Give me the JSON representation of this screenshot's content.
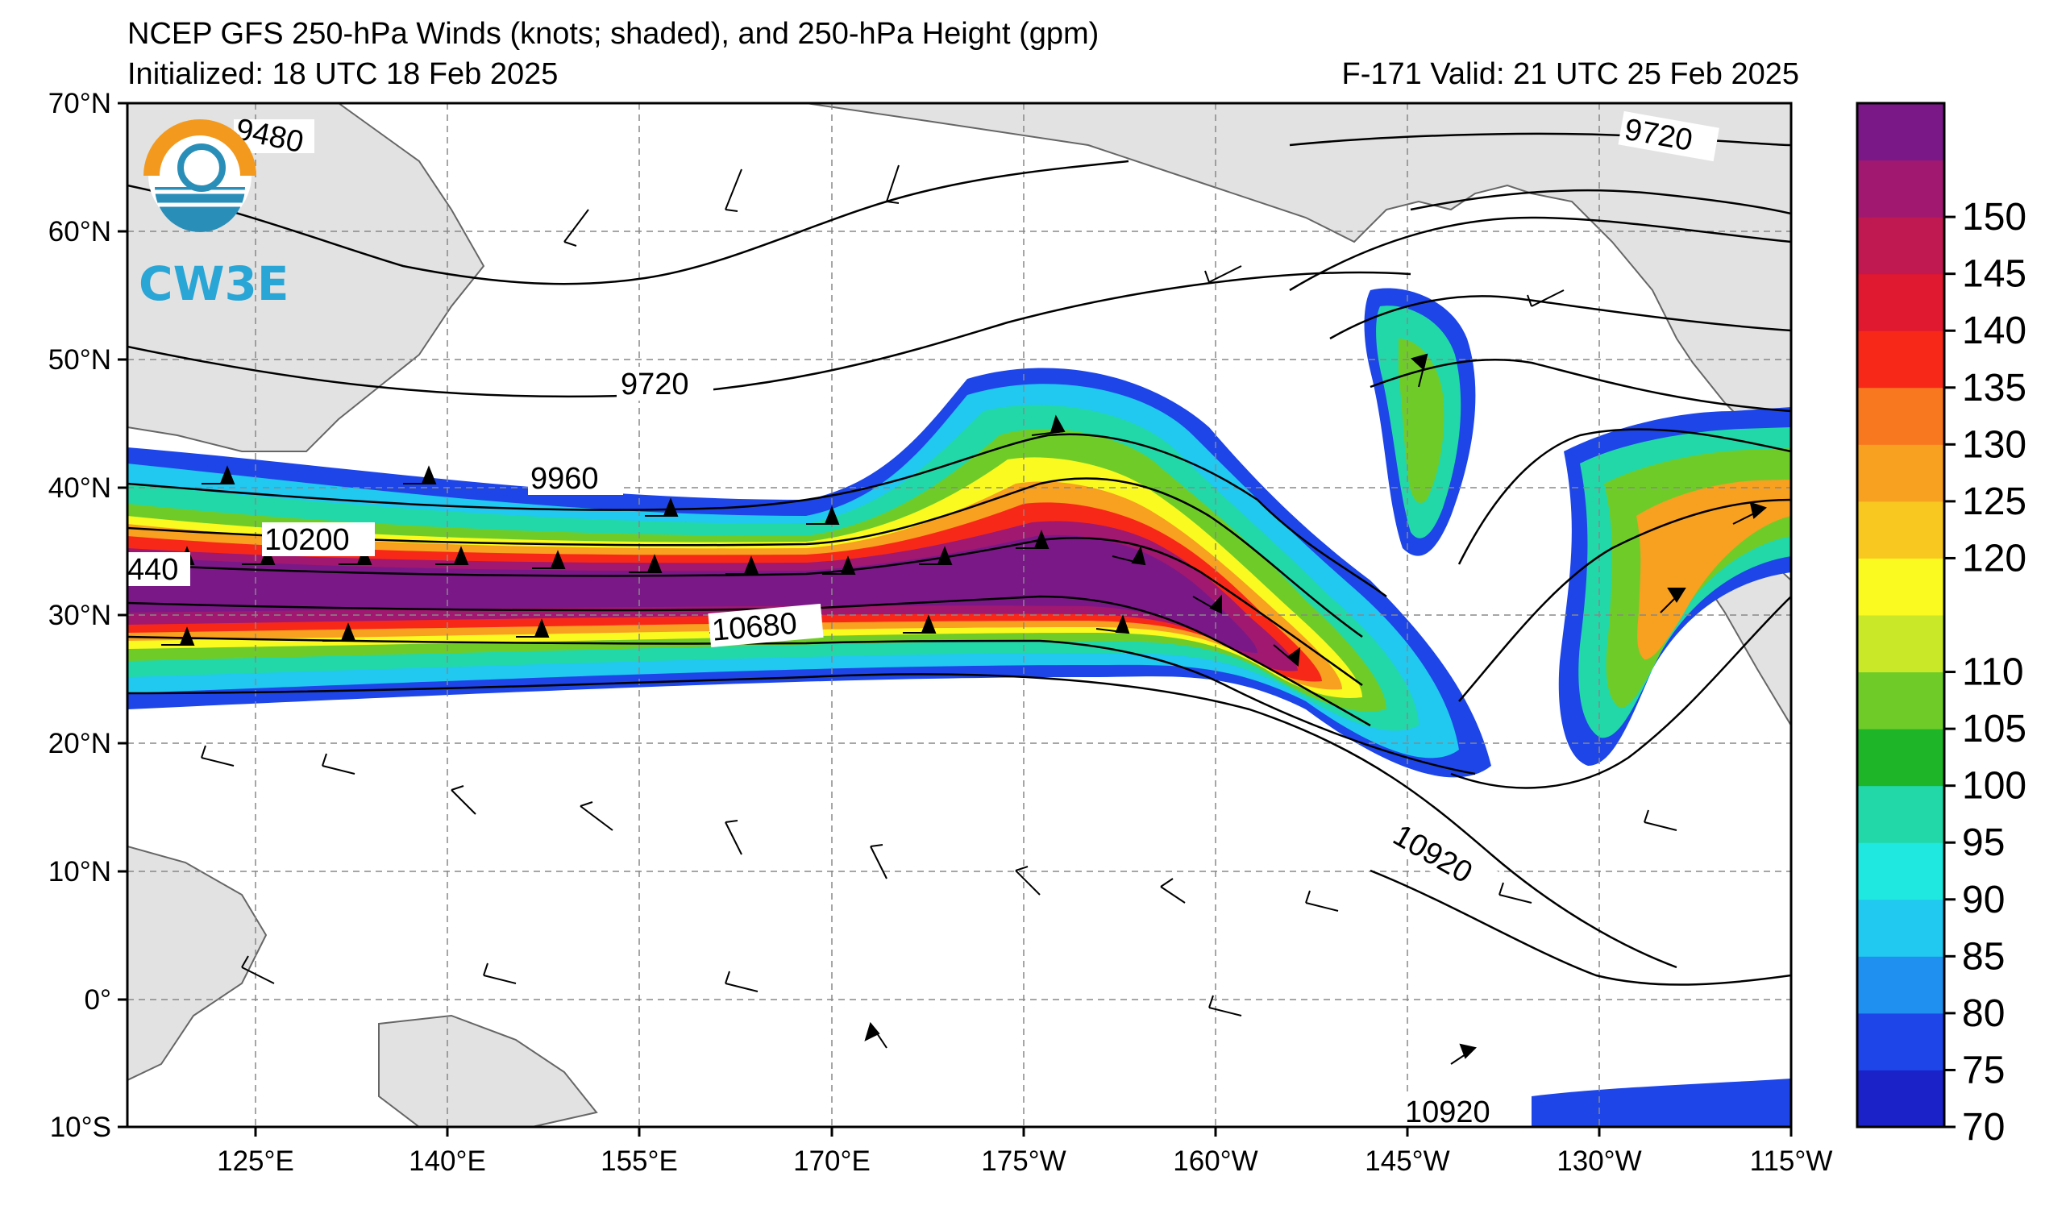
{
  "title": {
    "line1": "NCEP GFS 250-hPa Winds (knots; shaded), and 250-hPa Height (gpm)",
    "initialized": "Initialized: 18 UTC 18 Feb 2025",
    "valid": "F-171  Valid: 21 UTC 25 Feb 2025"
  },
  "logo": {
    "text": "CW3E"
  },
  "map": {
    "lat_labels": [
      "70°N",
      "60°N",
      "50°N",
      "40°N",
      "30°N",
      "20°N",
      "10°N",
      "0°",
      "10°S"
    ],
    "lon_labels": [
      "125°E",
      "140°E",
      "155°E",
      "170°E",
      "175°W",
      "160°W",
      "145°W",
      "130°W",
      "115°W"
    ],
    "lat_range": [
      -10,
      70
    ],
    "lon_range": [
      "115°E",
      "115°W"
    ]
  },
  "contour_labels": [
    {
      "id": "c9480",
      "text": "9480"
    },
    {
      "id": "c9720a",
      "text": "9720"
    },
    {
      "id": "c9720b",
      "text": "9720"
    },
    {
      "id": "c9960",
      "text": "9960"
    },
    {
      "id": "c10200",
      "text": "10200"
    },
    {
      "id": "c10440",
      "text": "440"
    },
    {
      "id": "c10680",
      "text": "10680"
    },
    {
      "id": "c10920a",
      "text": "10920"
    },
    {
      "id": "c10920b",
      "text": "10920"
    }
  ],
  "colorbar": {
    "ticks": [
      "70",
      "75",
      "80",
      "85",
      "90",
      "95",
      "100",
      "105",
      "110",
      "120",
      "125",
      "130",
      "135",
      "140",
      "145",
      "150"
    ],
    "colors": [
      "#1a22c8",
      "#1d45e8",
      "#2090f0",
      "#21c8f0",
      "#1ee8e0",
      "#22d8a8",
      "#1fb528",
      "#6fcc28",
      "#c8e828",
      "#fafa20",
      "#f8c820",
      "#f8a020",
      "#f87820",
      "#f82818",
      "#e01830",
      "#c01850",
      "#a01870",
      "#7a1888"
    ]
  }
}
